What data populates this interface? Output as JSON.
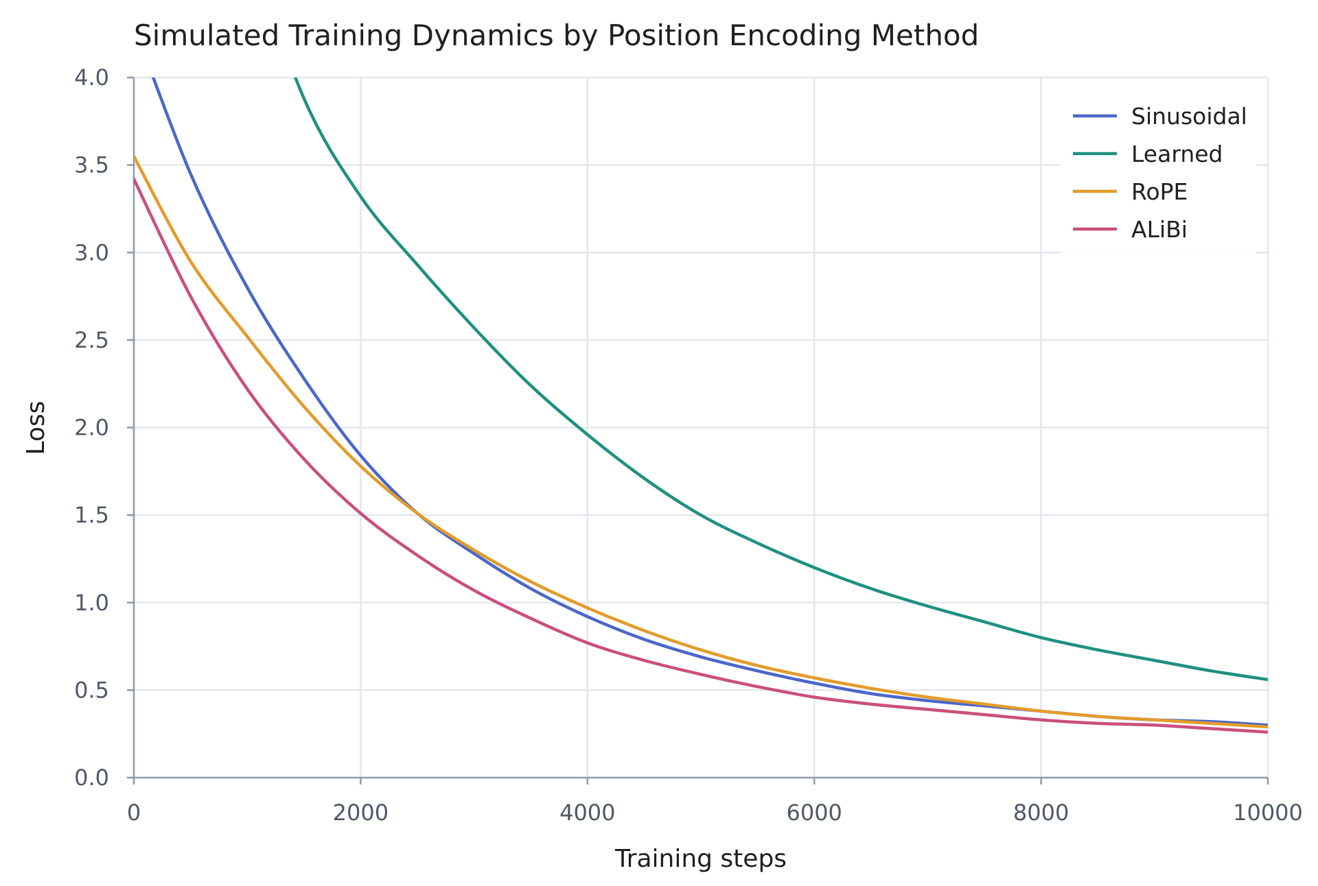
{
  "chart_data": {
    "type": "line",
    "title": "Simulated Training Dynamics by Position Encoding Method",
    "xlabel": "Training steps",
    "ylabel": "Loss",
    "xlim": [
      0,
      10000
    ],
    "ylim": [
      0,
      4.0
    ],
    "xticks": [
      0,
      2000,
      4000,
      6000,
      8000,
      10000
    ],
    "yticks": [
      0.0,
      0.5,
      1.0,
      1.5,
      2.0,
      2.5,
      3.0,
      3.5,
      4.0
    ],
    "ytick_labels": [
      "0.0",
      "0.5",
      "1.0",
      "1.5",
      "2.0",
      "2.5",
      "3.0",
      "3.5",
      "4.0"
    ],
    "grid": true,
    "legend_position": "top-right",
    "series": [
      {
        "name": "Sinusoidal",
        "color": "#4a67c9",
        "x": [
          0,
          500,
          1000,
          1500,
          2000,
          2500,
          3000,
          3500,
          4000,
          4500,
          5000,
          5500,
          6000,
          6500,
          7000,
          7500,
          8000,
          8500,
          9000,
          9500,
          10000
        ],
        "y": [
          4.3,
          3.45,
          2.8,
          2.28,
          1.84,
          1.51,
          1.28,
          1.08,
          0.92,
          0.79,
          0.69,
          0.61,
          0.54,
          0.48,
          0.44,
          0.41,
          0.38,
          0.35,
          0.33,
          0.32,
          0.3
        ]
      },
      {
        "name": "Learned",
        "color": "#1f9080",
        "x": [
          1000,
          1500,
          2000,
          2500,
          3000,
          3500,
          4000,
          4500,
          5000,
          5500,
          6000,
          6500,
          7000,
          7500,
          8000,
          8500,
          9000,
          9500,
          10000
        ],
        "y": [
          4.8,
          3.88,
          3.32,
          2.93,
          2.57,
          2.24,
          1.96,
          1.71,
          1.5,
          1.34,
          1.2,
          1.08,
          0.98,
          0.89,
          0.8,
          0.73,
          0.67,
          0.61,
          0.56
        ]
      },
      {
        "name": "RoPE",
        "color": "#e39b2a",
        "x": [
          0,
          500,
          1000,
          1500,
          2000,
          2500,
          3000,
          3500,
          4000,
          4500,
          5000,
          5500,
          6000,
          6500,
          7000,
          7500,
          8000,
          8500,
          9000,
          9500,
          10000
        ],
        "y": [
          3.55,
          2.95,
          2.52,
          2.12,
          1.78,
          1.51,
          1.3,
          1.12,
          0.97,
          0.84,
          0.73,
          0.64,
          0.57,
          0.51,
          0.46,
          0.42,
          0.38,
          0.35,
          0.33,
          0.31,
          0.29
        ]
      },
      {
        "name": "ALiBi",
        "color": "#c94f7c",
        "x": [
          0,
          500,
          1000,
          1500,
          2000,
          2500,
          3000,
          3500,
          4000,
          4500,
          5000,
          5500,
          6000,
          6500,
          7000,
          7500,
          8000,
          8500,
          9000,
          9500,
          10000
        ],
        "y": [
          3.42,
          2.75,
          2.22,
          1.82,
          1.51,
          1.27,
          1.07,
          0.91,
          0.77,
          0.67,
          0.59,
          0.52,
          0.46,
          0.42,
          0.39,
          0.36,
          0.33,
          0.31,
          0.3,
          0.28,
          0.26
        ]
      }
    ]
  }
}
